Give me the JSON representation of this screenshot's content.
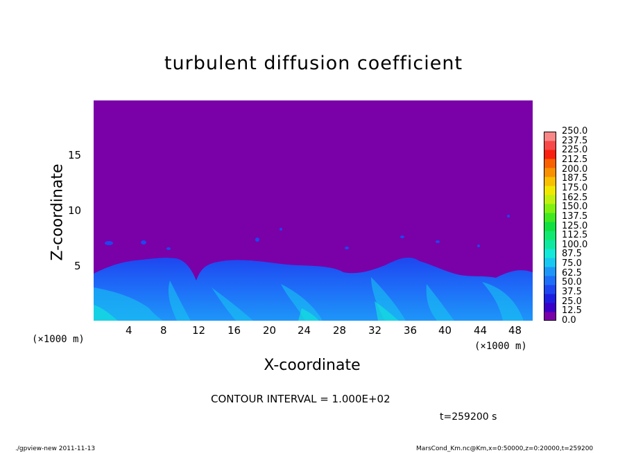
{
  "chart_data": {
    "type": "heatmap",
    "title": "turbulent diffusion coefficient",
    "xlabel": "X-coordinate",
    "ylabel": "Z-coordinate",
    "x_unit_left": "(×1000 m)",
    "x_unit_right": "(×1000 m)",
    "xlim": [
      0,
      50
    ],
    "ylim": [
      0,
      20
    ],
    "x_ticks": [
      "4",
      "8",
      "12",
      "16",
      "20",
      "24",
      "28",
      "32",
      "36",
      "40",
      "44",
      "48"
    ],
    "y_ticks": [
      "5",
      "10",
      "15"
    ],
    "colorbar": {
      "levels": [
        "0.0",
        "12.5",
        "25.0",
        "37.5",
        "50.0",
        "62.5",
        "75.0",
        "87.5",
        "100.0",
        "112.5",
        "125.0",
        "137.5",
        "150.0",
        "162.5",
        "175.0",
        "187.5",
        "200.0",
        "212.5",
        "225.0",
        "237.5",
        "250.0"
      ],
      "colors": [
        "#7a00a8",
        "#3a00c8",
        "#1e1ee0",
        "#1e46f0",
        "#1e6ef8",
        "#1e96f8",
        "#18c8f0",
        "#14e8d8",
        "#10e8a0",
        "#10e870",
        "#10e040",
        "#40e820",
        "#80f010",
        "#c0f010",
        "#f0e800",
        "#f8c000",
        "#f89000",
        "#f86000",
        "#f82010",
        "#f84848",
        "#f88888"
      ]
    },
    "contour_interval": "CONTOUR INTERVAL = 1.000E+02",
    "time_label": "t=259200 s",
    "footer_left": "./gpview-new   2011-11-13",
    "footer_right": "MarsCond_Km.nc@Km,x=0:50000,z=0:20000,t=259200",
    "colors": {
      "background_field": "#7a00a8",
      "boundary_layer": "#1e46f0"
    }
  }
}
